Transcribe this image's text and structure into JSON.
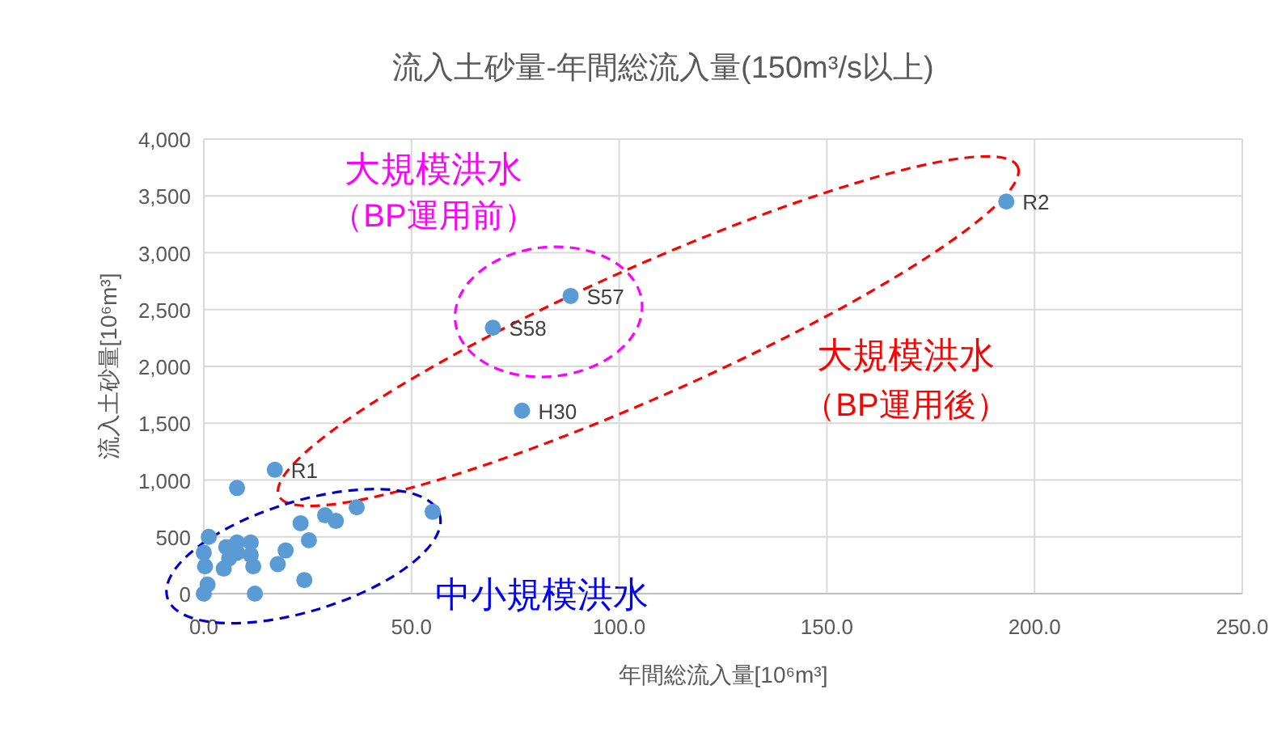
{
  "chart_data": {
    "type": "scatter",
    "title": "流入土砂量-年間総流入量(150m³/s以上)",
    "xlabel": "年間総流入量[10⁶m³]",
    "ylabel": "流入土砂量[10⁶m³]",
    "x": [
      193.2,
      88.3,
      69.6,
      76.6,
      17.1,
      8.0,
      36.8,
      55.1,
      29.2,
      31.8,
      23.3,
      25.3,
      19.7,
      17.8,
      24.2,
      12.3,
      1.2,
      0.0,
      5.4,
      8.0,
      11.3,
      11.3,
      11.9,
      4.8,
      8.0,
      0.3,
      0.9,
      0.0,
      6.1
    ],
    "values": [
      3450,
      2620,
      2340,
      1610,
      1090,
      930,
      760,
      720,
      690,
      640,
      620,
      470,
      380,
      260,
      120,
      0,
      500,
      360,
      410,
      450,
      450,
      340,
      240,
      220,
      360,
      240,
      80,
      0,
      310
    ],
    "color": "#5b9bd5",
    "marker": "circle",
    "grid": true,
    "xlim": [
      0,
      250
    ],
    "xticks": [
      {
        "value": 0,
        "label": "0.0"
      },
      {
        "value": 50,
        "label": "50.0"
      },
      {
        "value": 100,
        "label": "100.0"
      },
      {
        "value": 150,
        "label": "150.0"
      },
      {
        "value": 200,
        "label": "200.0"
      },
      {
        "value": 250,
        "label": "250.0"
      }
    ],
    "ylim": [
      0,
      4000
    ],
    "yticks": [
      0,
      {
        "value": 500,
        "label": "500"
      },
      {
        "value": 1000,
        "label": "1,000"
      },
      {
        "value": 1500,
        "label": "1,500"
      },
      {
        "value": 2000,
        "label": "2,000"
      },
      {
        "value": 2500,
        "label": "2,500"
      },
      {
        "value": 3000,
        "label": "3,000"
      },
      {
        "value": 3500,
        "label": "3,500"
      },
      {
        "value": 4000,
        "label": "4,000"
      }
    ],
    "annotations": [
      {
        "text": "R2",
        "x": 193.2,
        "y": 3450
      },
      {
        "text": "S57",
        "x": 88.3,
        "y": 2620
      },
      {
        "text": "S58",
        "x": 69.6,
        "y": 2340
      },
      {
        "text": "H30",
        "x": 76.6,
        "y": 1610
      },
      {
        "text": "R1",
        "x": 17.1,
        "y": 1090
      },
      "大規模洪水",
      "（BP運用前）",
      "大規模洪水",
      "（BP運用後）",
      "中小規模洪水"
    ]
  }
}
